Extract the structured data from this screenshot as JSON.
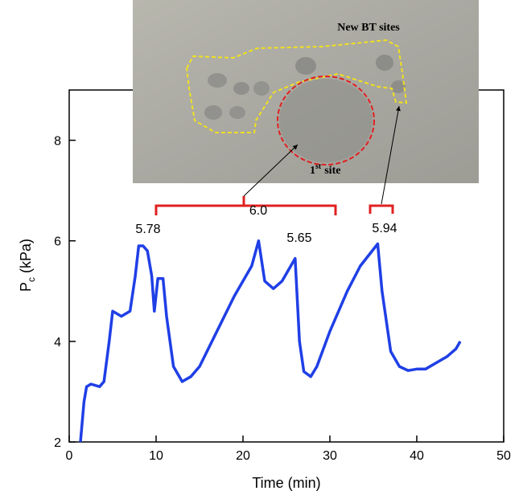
{
  "chart_data": {
    "type": "line",
    "x_label": "Time (min)",
    "y_label": [
      "P",
      "c",
      "(kPa)"
    ],
    "xlim": [
      0,
      50
    ],
    "xticks": [
      0,
      10,
      20,
      30,
      40,
      50
    ],
    "ylim": [
      2,
      9
    ],
    "yticks": [
      2,
      4,
      6,
      8
    ],
    "series": [
      {
        "color": "#1f3fe6",
        "x": [
          1.3,
          1.7,
          2.0,
          2.5,
          3.5,
          4.0,
          4.6,
          5.0,
          6.0,
          7.0,
          7.6,
          8.0,
          8.5,
          9.0,
          9.5,
          9.8,
          10.2,
          10.8,
          11.2,
          12.0,
          13.0,
          14.0,
          15.0,
          17.0,
          19.0,
          21.0,
          21.8,
          22.5,
          23.5,
          24.5,
          25.5,
          26.0,
          26.5,
          27.0,
          27.8,
          28.5,
          30.0,
          32.0,
          33.5,
          35.5,
          36.0,
          37.0,
          38.0,
          39.0,
          40.0,
          41.0,
          42.5,
          43.5,
          44.5,
          45.0
        ],
        "values": [
          2.0,
          2.8,
          3.1,
          3.15,
          3.1,
          3.2,
          4.0,
          4.6,
          4.5,
          4.6,
          5.3,
          5.9,
          5.9,
          5.8,
          5.3,
          4.6,
          5.25,
          5.25,
          4.5,
          3.5,
          3.2,
          3.3,
          3.5,
          4.2,
          4.9,
          5.5,
          6.0,
          5.2,
          5.05,
          5.2,
          5.5,
          5.65,
          4.0,
          3.4,
          3.3,
          3.5,
          4.2,
          5.0,
          5.5,
          5.94,
          5.0,
          3.8,
          3.5,
          3.42,
          3.45,
          3.45,
          3.6,
          3.7,
          3.85,
          4.0
        ]
      }
    ],
    "annotations": [
      "5.78",
      "6.0",
      "5.65",
      "5.94"
    ],
    "inset_labels": {
      "new_sites": "New BT sites",
      "first_site": [
        "1",
        "st",
        "site"
      ]
    }
  }
}
